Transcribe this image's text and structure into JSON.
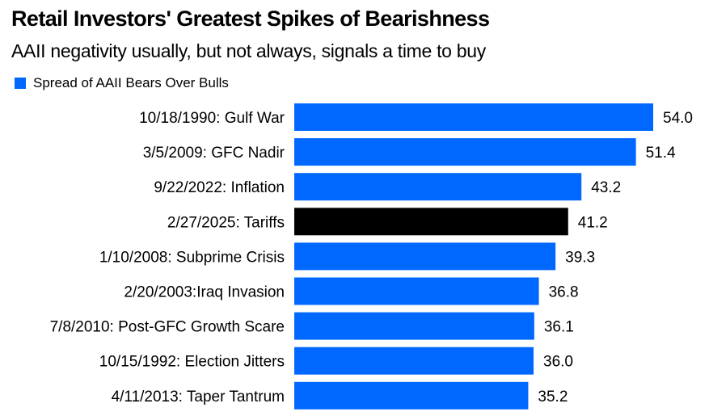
{
  "chart_data": {
    "type": "bar",
    "orientation": "horizontal",
    "title": "Retail Investors' Greatest Spikes of Bearishness",
    "subtitle": "AAII negativity usually, but not always, signals a time to buy",
    "legend": [
      {
        "name": "Spread of AAII Bears Over Bulls",
        "color": "#0068ff"
      }
    ],
    "legend_position": "top-left",
    "categories": [
      "10/18/1990: Gulf War",
      "3/5/2009: GFC Nadir",
      "9/22/2022: Inflation",
      "2/27/2025: Tariffs",
      "1/10/2008: Subprime Crisis",
      "2/20/2003:Iraq Invasion",
      "7/8/2010: Post-GFC Growth Scare",
      "10/15/1992: Election Jitters",
      "4/11/2013: Taper Tantrum"
    ],
    "series": [
      {
        "name": "Spread of AAII Bears Over Bulls",
        "values": [
          54.0,
          51.4,
          43.2,
          41.2,
          39.3,
          36.8,
          36.1,
          36.0,
          35.2
        ],
        "value_labels": [
          "54.0",
          "51.4",
          "43.2",
          "41.2",
          "39.3",
          "36.8",
          "36.1",
          "36.0",
          "35.2"
        ]
      }
    ],
    "highlight_index": 3,
    "colors": {
      "default": "#0068ff",
      "highlight": "#000000"
    },
    "xlim": [
      0,
      54.0
    ],
    "grid": false,
    "xlabel": "",
    "ylabel": ""
  }
}
